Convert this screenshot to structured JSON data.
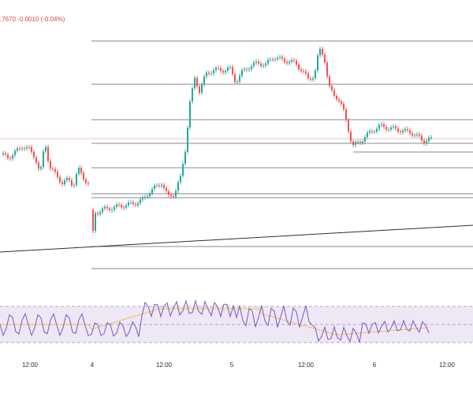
{
  "header": {
    "price_readout": ",7670 -0.0010 (-0.04%)"
  },
  "colors": {
    "up": "#26a69a",
    "down": "#ef5350",
    "level_line": "#5d606b",
    "trendline": "#2a2e39",
    "rsi_line": "#7e57c2",
    "rsi_ma": "#f5c242",
    "rsi_band": "#ede7f6",
    "rsi_dashed": "#9598a1",
    "price_line": "#f4a7a7"
  },
  "chart_data": [
    {
      "type": "candlestick",
      "title": "",
      "x_tick_labels": [
        "12:00",
        "4",
        "12:00",
        "5",
        "12:00",
        "6",
        "12:00"
      ],
      "horizontal_levels_note": "",
      "visible_price_readout": ",7670 -0.0010 (-0.04%)"
    },
    {
      "type": "line",
      "title": "",
      "series": [
        {
          "name": "",
          "role": "oscillator"
        },
        {
          "name": "",
          "role": "moving-average"
        }
      ],
      "band": "shaded between upper and lower dashed levels"
    }
  ],
  "x_axis": {
    "labels": [
      "12:00",
      "4",
      "12:00",
      "5",
      "12:00",
      "6",
      "12:00"
    ]
  }
}
